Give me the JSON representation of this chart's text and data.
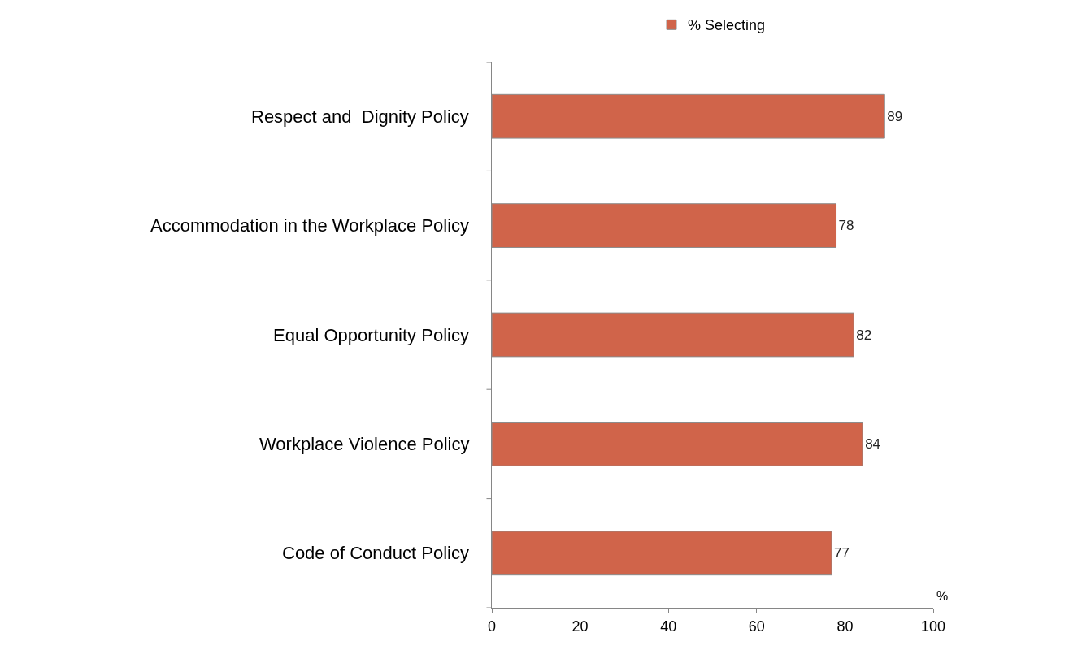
{
  "chart_data": {
    "type": "bar",
    "orientation": "horizontal",
    "xlabel": "%",
    "categories": [
      "Respect and  Dignity Policy",
      "Accommodation in the Workplace Policy",
      "Equal Opportunity Policy",
      "Workplace Violence Policy",
      "Code of Conduct Policy"
    ],
    "series": [
      {
        "name": "% Selecting",
        "color": "#d0644a",
        "values": [
          89,
          78,
          82,
          84,
          77
        ]
      }
    ],
    "xlim": [
      0,
      100
    ],
    "xticks": [
      0,
      20,
      40,
      60,
      80,
      100
    ],
    "grid": false,
    "legend": "top",
    "data_labels": true
  }
}
